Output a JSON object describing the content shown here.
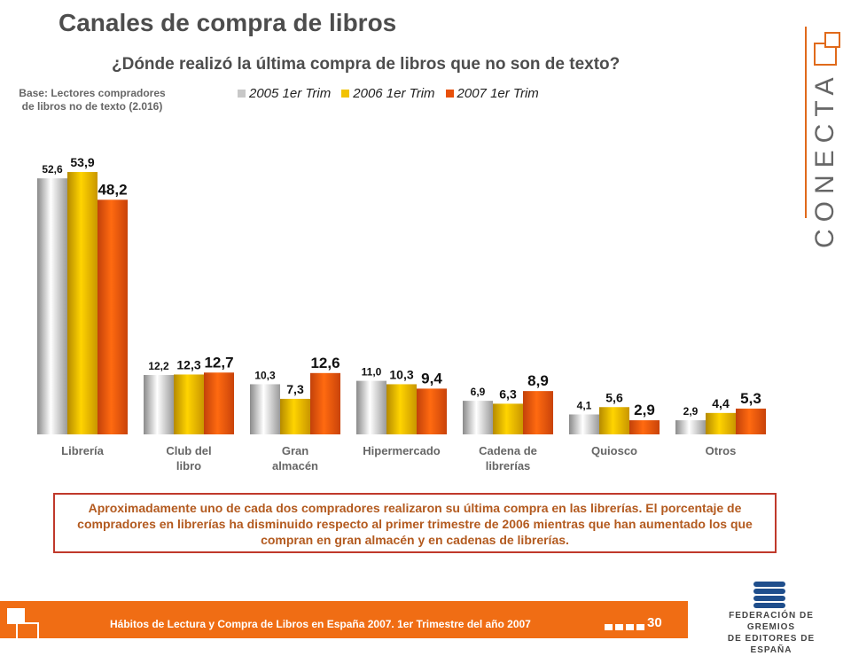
{
  "page": {
    "title": "Canales de compra de libros",
    "subtitle": "¿Dónde realizó la última compra de libros que no son de texto?",
    "base_note_line1": "Base: Lectores compradores",
    "base_note_line2": "de libros no de texto (2.016)",
    "note": "Aproximadamente uno de cada dos compradores realizaron su última compra en las librerías. El porcentaje de compradores en librerías ha disminuido respecto al primer trimestre de 2006 mientras que han aumentado los que compran en gran almacén y en cadenas de librerías.",
    "footer_text": "Hábitos de Lectura y Compra de Libros en España 2007. 1er Trimestre del año 2007",
    "page_number": "30",
    "logo_text": "CONECTA",
    "federation_line1": "FEDERACIÓN DE GREMIOS",
    "federation_line2": "DE EDITORES DE ESPAÑA"
  },
  "colors": {
    "accent": "#f06d14",
    "series_2005": "#c8c8c8",
    "series_2006": "#f2c200",
    "series_2007": "#e8500a"
  },
  "chart_data": {
    "type": "bar",
    "categories": [
      "Librería",
      "Club del libro",
      "Gran almacén",
      "Hipermercado",
      "Cadena de librerías",
      "Quiosco",
      "Otros"
    ],
    "category_lines": [
      [
        "Librería"
      ],
      [
        "Club del",
        "libro"
      ],
      [
        "Gran",
        "almacén"
      ],
      [
        "Hipermercado"
      ],
      [
        "Cadena de",
        "librerías"
      ],
      [
        "Quiosco"
      ],
      [
        "Otros"
      ]
    ],
    "series": [
      {
        "name": "2005 1er Trim",
        "values": [
          52.6,
          12.2,
          10.3,
          11.0,
          6.9,
          4.1,
          2.9
        ],
        "labels": [
          "52,6",
          "12,2",
          "10,3",
          "11,0",
          "6,9",
          "4,1",
          "2,9"
        ]
      },
      {
        "name": "2006 1er Trim",
        "values": [
          53.9,
          12.3,
          7.3,
          10.3,
          6.3,
          5.6,
          4.4
        ],
        "labels": [
          "53,9",
          "12,3",
          "7,3",
          "10,3",
          "6,3",
          "5,6",
          "4,4"
        ]
      },
      {
        "name": "2007 1er Trim",
        "values": [
          48.2,
          12.7,
          12.6,
          9.4,
          8.9,
          2.9,
          5.3
        ],
        "labels": [
          "48,2",
          "12,7",
          "12,6",
          "9,4",
          "8,9",
          "2,9",
          "5,3"
        ]
      }
    ],
    "ylim": [
      0,
      55
    ],
    "legend_position": "top",
    "grid": false
  }
}
